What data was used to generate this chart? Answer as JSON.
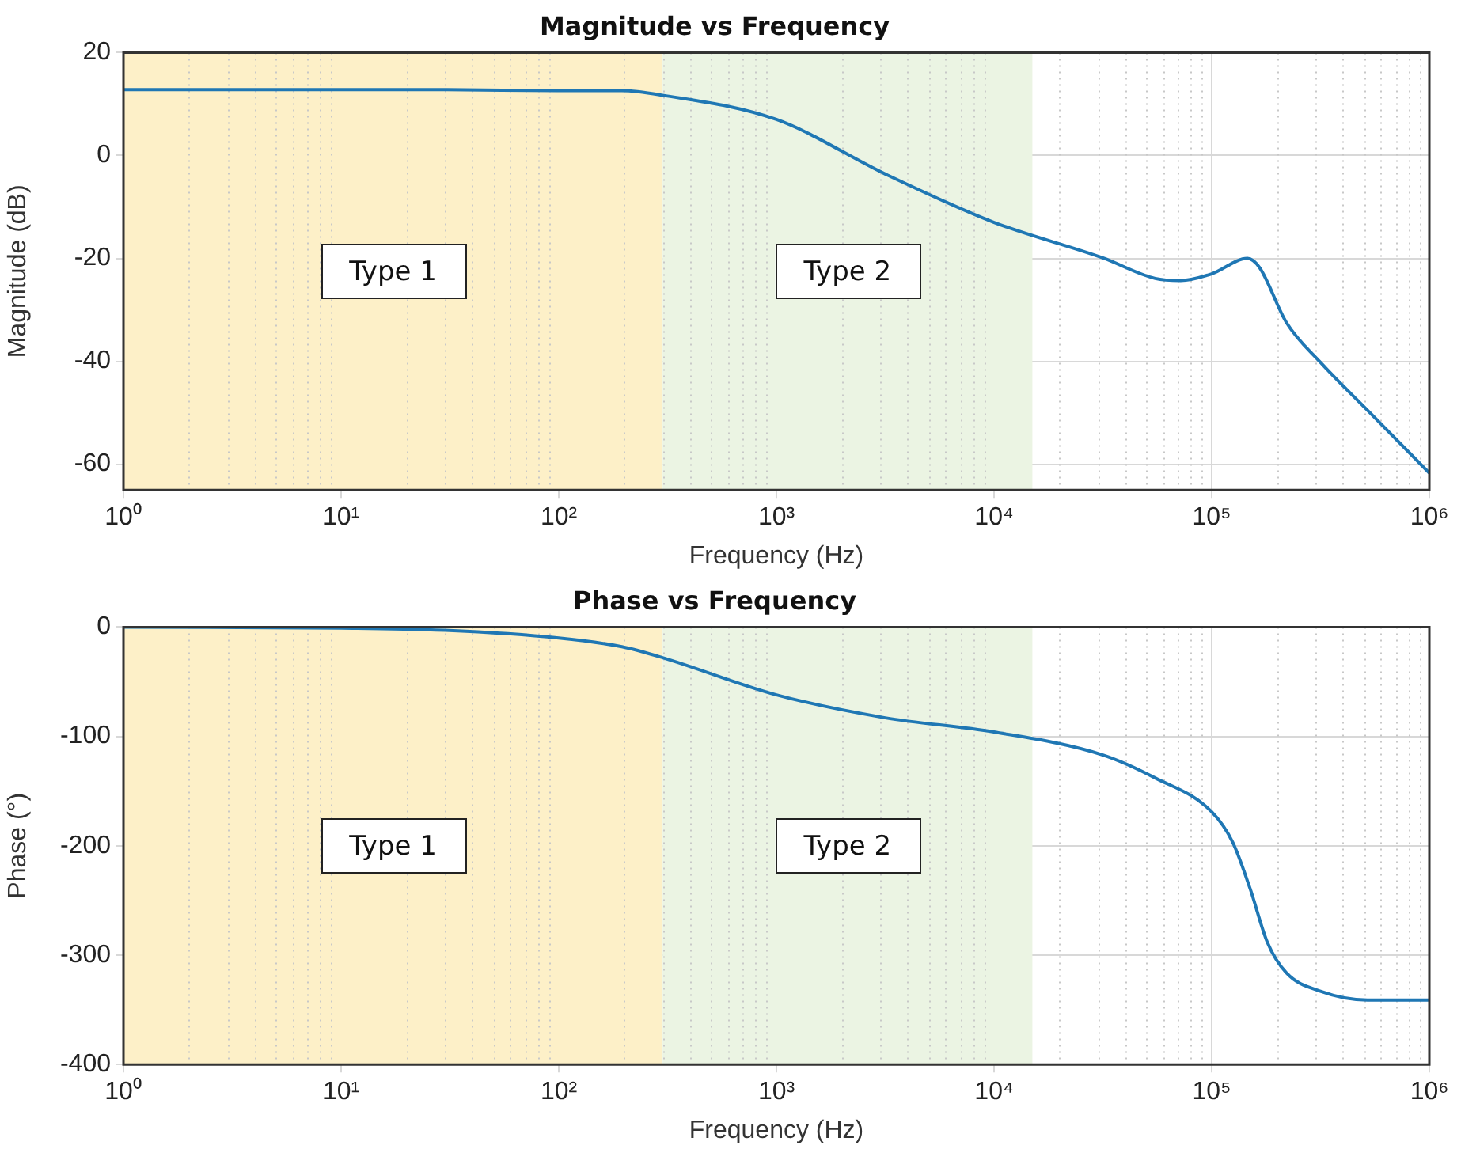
{
  "chart_data": [
    {
      "type": "line",
      "title": "Magnitude vs Frequency",
      "xlabel": "Frequency (Hz)",
      "ylabel": "Magnitude (dB)",
      "log": "x",
      "grid": true,
      "marker": "none",
      "line_style": "solid",
      "xlim": [
        1,
        1000000
      ],
      "xticks": [
        {
          "value": 1,
          "label": "10⁰"
        },
        {
          "value": 10,
          "label": "10¹"
        },
        {
          "value": 100,
          "label": "10²"
        },
        {
          "value": 1000,
          "label": "10³"
        },
        {
          "value": 10000,
          "label": "10⁴"
        },
        {
          "value": 100000,
          "label": "10⁵"
        },
        {
          "value": 1000000,
          "label": "10⁶"
        }
      ],
      "ylim": [
        -65,
        20
      ],
      "yticks": [
        20,
        0,
        -20,
        -40,
        -60
      ],
      "bands": [
        {
          "axis": "x",
          "from": 1,
          "to": 300,
          "label": "Type 1",
          "color": "#fdf0c8"
        },
        {
          "axis": "x",
          "from": 300,
          "to": 15000,
          "label": "Type 2",
          "color": "#ebf4e3"
        }
      ],
      "series": [
        {
          "color": "#1f77b4",
          "x": [
            1,
            10,
            30,
            100,
            195,
            300,
            1000,
            3162,
            10000,
            31623,
            55000,
            72000,
            100000,
            146000,
            166000,
            220000,
            316000,
            525000,
            1000000
          ],
          "values": [
            12.8,
            12.8,
            12.8,
            12.6,
            12.6,
            11.7,
            7.0,
            -3.6,
            -13,
            -19.9,
            -23.9,
            -24.3,
            -23,
            -20,
            -21.8,
            -32.4,
            -40.2,
            -49.7,
            -61.7
          ]
        }
      ]
    },
    {
      "type": "line",
      "title": "Phase vs Frequency",
      "xlabel": "Frequency (Hz)",
      "ylabel": "Phase (°)",
      "log": "x",
      "grid": true,
      "marker": "none",
      "line_style": "solid",
      "xlim": [
        1,
        1000000
      ],
      "xticks": [
        {
          "value": 1,
          "label": "10⁰"
        },
        {
          "value": 10,
          "label": "10¹"
        },
        {
          "value": 100,
          "label": "10²"
        },
        {
          "value": 1000,
          "label": "10³"
        },
        {
          "value": 10000,
          "label": "10⁴"
        },
        {
          "value": 100000,
          "label": "10⁵"
        },
        {
          "value": 1000000,
          "label": "10⁶"
        }
      ],
      "ylim": [
        -400,
        0
      ],
      "yticks": [
        0,
        -100,
        -200,
        -300,
        -400
      ],
      "bands": [
        {
          "axis": "x",
          "from": 1,
          "to": 300,
          "label": "Type 1",
          "color": "#fdf0c8"
        },
        {
          "axis": "x",
          "from": 300,
          "to": 15000,
          "label": "Type 2",
          "color": "#ebf4e3"
        }
      ],
      "series": [
        {
          "color": "#1f77b4",
          "x": [
            1,
            10,
            30,
            100,
            195,
            300,
            1000,
            3162,
            10000,
            31623,
            55000,
            100000,
            125000,
            150000,
            180000,
            220000,
            316000,
            520000,
            1000000
          ],
          "values": [
            0,
            -1,
            -3,
            -10,
            -18,
            -28,
            -62,
            -83,
            -96,
            -117,
            -138,
            -169,
            -197,
            -239,
            -288,
            -316,
            -333,
            -341,
            -341
          ]
        }
      ]
    }
  ]
}
